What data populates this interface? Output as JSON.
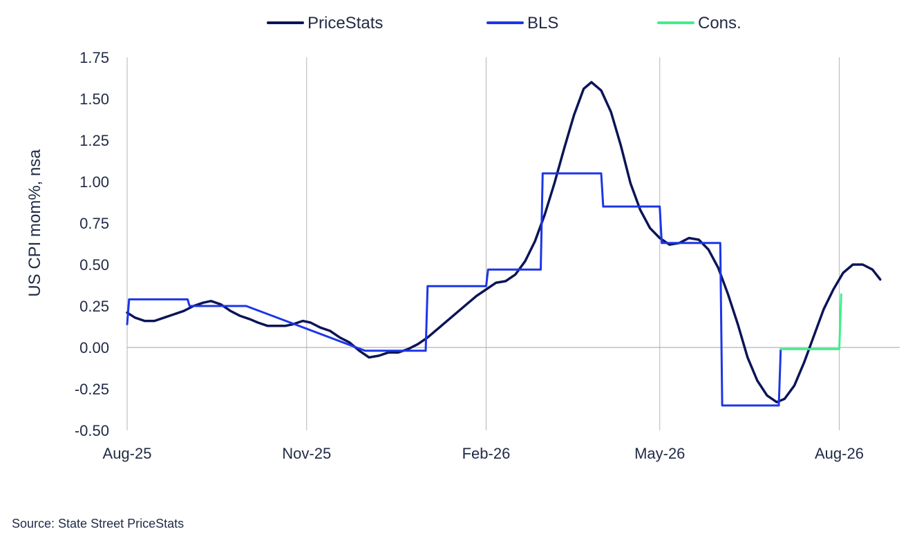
{
  "chart_data": {
    "type": "line",
    "title": "",
    "xlabel": "",
    "ylabel": "US CPI mom%, nsa",
    "ylim": [
      -0.5,
      1.75
    ],
    "yticks": [
      "1.75",
      "1.50",
      "1.25",
      "1.00",
      "0.75",
      "0.50",
      "0.25",
      "0.00",
      "-0.25",
      "-0.50"
    ],
    "xlim": [
      "2025-08-01",
      "2026-09-01"
    ],
    "xticks": [
      {
        "date": "2025-08-01",
        "label": "Aug-25"
      },
      {
        "date": "2025-11-01",
        "label": "Nov-25"
      },
      {
        "date": "2026-02-01",
        "label": "Feb-26"
      },
      {
        "date": "2026-05-01",
        "label": "May-26"
      },
      {
        "date": "2026-08-01",
        "label": "Aug-26"
      }
    ],
    "grid": "vertical",
    "legend": "top",
    "series": [
      {
        "name": "PriceStats",
        "color": "#0b1457",
        "points": [
          [
            "2025-08-01",
            0.21
          ],
          [
            "2025-08-05",
            0.18
          ],
          [
            "2025-08-10",
            0.16
          ],
          [
            "2025-08-15",
            0.16
          ],
          [
            "2025-08-20",
            0.18
          ],
          [
            "2025-08-25",
            0.2
          ],
          [
            "2025-08-30",
            0.22
          ],
          [
            "2025-09-04",
            0.25
          ],
          [
            "2025-09-09",
            0.27
          ],
          [
            "2025-09-13",
            0.28
          ],
          [
            "2025-09-18",
            0.26
          ],
          [
            "2025-09-23",
            0.22
          ],
          [
            "2025-09-28",
            0.19
          ],
          [
            "2025-10-03",
            0.17
          ],
          [
            "2025-10-07",
            0.15
          ],
          [
            "2025-10-12",
            0.13
          ],
          [
            "2025-10-16",
            0.13
          ],
          [
            "2025-10-21",
            0.13
          ],
          [
            "2025-10-25",
            0.14
          ],
          [
            "2025-10-30",
            0.16
          ],
          [
            "2025-11-03",
            0.15
          ],
          [
            "2025-11-08",
            0.12
          ],
          [
            "2025-11-13",
            0.1
          ],
          [
            "2025-11-18",
            0.06
          ],
          [
            "2025-11-23",
            0.03
          ],
          [
            "2025-11-28",
            -0.02
          ],
          [
            "2025-12-03",
            -0.06
          ],
          [
            "2025-12-08",
            -0.05
          ],
          [
            "2025-12-13",
            -0.03
          ],
          [
            "2025-12-18",
            -0.03
          ],
          [
            "2025-12-23",
            -0.01
          ],
          [
            "2025-12-28",
            0.02
          ],
          [
            "2026-01-02",
            0.06
          ],
          [
            "2026-01-07",
            0.11
          ],
          [
            "2026-01-12",
            0.16
          ],
          [
            "2026-01-17",
            0.21
          ],
          [
            "2026-01-22",
            0.26
          ],
          [
            "2026-01-27",
            0.31
          ],
          [
            "2026-02-01",
            0.35
          ],
          [
            "2026-02-06",
            0.39
          ],
          [
            "2026-02-11",
            0.4
          ],
          [
            "2026-02-16",
            0.44
          ],
          [
            "2026-02-21",
            0.52
          ],
          [
            "2026-02-26",
            0.64
          ],
          [
            "2026-03-03",
            0.8
          ],
          [
            "2026-03-08",
            0.99
          ],
          [
            "2026-03-13",
            1.2
          ],
          [
            "2026-03-18",
            1.4
          ],
          [
            "2026-03-23",
            1.56
          ],
          [
            "2026-03-27",
            1.6
          ],
          [
            "2026-04-01",
            1.55
          ],
          [
            "2026-04-06",
            1.42
          ],
          [
            "2026-04-11",
            1.22
          ],
          [
            "2026-04-16",
            0.99
          ],
          [
            "2026-04-21",
            0.83
          ],
          [
            "2026-04-26",
            0.72
          ],
          [
            "2026-05-01",
            0.66
          ],
          [
            "2026-05-06",
            0.62
          ],
          [
            "2026-05-11",
            0.63
          ],
          [
            "2026-05-16",
            0.66
          ],
          [
            "2026-05-21",
            0.65
          ],
          [
            "2026-05-26",
            0.59
          ],
          [
            "2026-05-31",
            0.48
          ],
          [
            "2026-06-05",
            0.32
          ],
          [
            "2026-06-10",
            0.14
          ],
          [
            "2026-06-15",
            -0.06
          ],
          [
            "2026-06-20",
            -0.2
          ],
          [
            "2026-06-25",
            -0.29
          ],
          [
            "2026-06-30",
            -0.33
          ],
          [
            "2026-07-04",
            -0.31
          ],
          [
            "2026-07-09",
            -0.23
          ],
          [
            "2026-07-14",
            -0.09
          ],
          [
            "2026-07-19",
            0.07
          ],
          [
            "2026-07-24",
            0.23
          ],
          [
            "2026-07-29",
            0.35
          ],
          [
            "2026-08-03",
            0.45
          ],
          [
            "2026-08-08",
            0.5
          ],
          [
            "2026-08-13",
            0.5
          ],
          [
            "2026-08-18",
            0.47
          ],
          [
            "2026-08-22",
            0.41
          ]
        ]
      },
      {
        "name": "BLS",
        "color": "#1c35e8",
        "points": [
          [
            "2025-08-01",
            0.14
          ],
          [
            "2025-08-02",
            0.29
          ],
          [
            "2025-09-01",
            0.29
          ],
          [
            "2025-09-02",
            0.25
          ],
          [
            "2025-10-01",
            0.25
          ],
          [
            "2025-12-01",
            -0.02
          ],
          [
            "2026-01-01",
            -0.02
          ],
          [
            "2026-01-02",
            0.37
          ],
          [
            "2026-02-01",
            0.37
          ],
          [
            "2026-02-02",
            0.47
          ],
          [
            "2026-03-01",
            0.47
          ],
          [
            "2026-03-02",
            1.05
          ],
          [
            "2026-04-01",
            1.05
          ],
          [
            "2026-04-02",
            0.85
          ],
          [
            "2026-05-01",
            0.85
          ],
          [
            "2026-05-02",
            0.63
          ],
          [
            "2026-06-01",
            0.63
          ],
          [
            "2026-06-02",
            -0.35
          ],
          [
            "2026-07-01",
            -0.35
          ],
          [
            "2026-07-02",
            -0.01
          ]
        ]
      },
      {
        "name": "Cons.",
        "color": "#3df08a",
        "points": [
          [
            "2026-07-02",
            -0.01
          ],
          [
            "2026-08-01",
            -0.01
          ],
          [
            "2026-08-02",
            0.32
          ]
        ]
      }
    ],
    "source": "Source: State Street PriceStats"
  }
}
